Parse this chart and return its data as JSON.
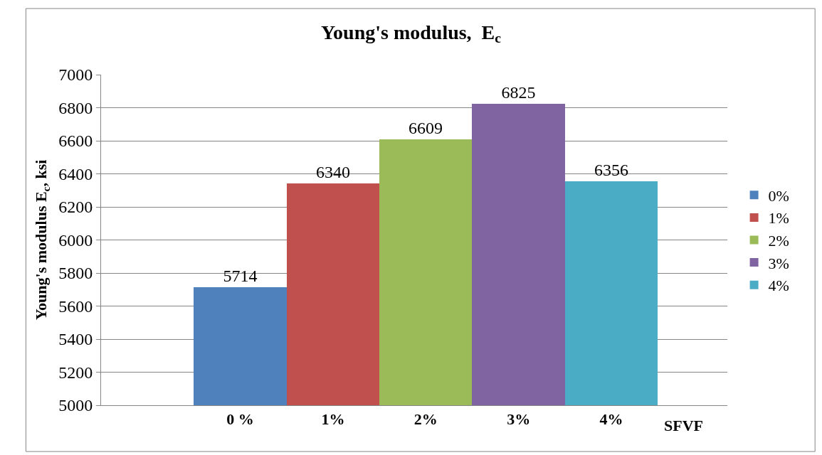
{
  "chart_data": {
    "type": "bar",
    "title": "Young's modulus,  E$_{c}$",
    "xlabel": "SFVF",
    "ylabel": "Young's modulus E$_{c}$, ksi",
    "categories": [
      "0 %",
      "1%",
      "2%",
      "3%",
      "4%"
    ],
    "series": [
      {
        "name": "0%",
        "color": "#4f81bd",
        "values": [
          5714,
          null,
          null,
          null,
          null
        ]
      },
      {
        "name": "1%",
        "color": "#c0504d",
        "values": [
          null,
          6340,
          null,
          null,
          null
        ]
      },
      {
        "name": "2%",
        "color": "#9bbb59",
        "values": [
          null,
          null,
          6609,
          null,
          null
        ]
      },
      {
        "name": "3%",
        "color": "#8064a2",
        "values": [
          null,
          null,
          null,
          6825,
          null
        ]
      },
      {
        "name": "4%",
        "color": "#4bacc6",
        "values": [
          null,
          null,
          null,
          null,
          6356
        ]
      }
    ],
    "ylim": [
      5000,
      7000
    ],
    "yticks": [
      5000,
      5200,
      5400,
      5600,
      5800,
      6000,
      6200,
      6400,
      6600,
      6800,
      7000
    ],
    "grid": "y",
    "legend": "right",
    "data_labels": true
  }
}
